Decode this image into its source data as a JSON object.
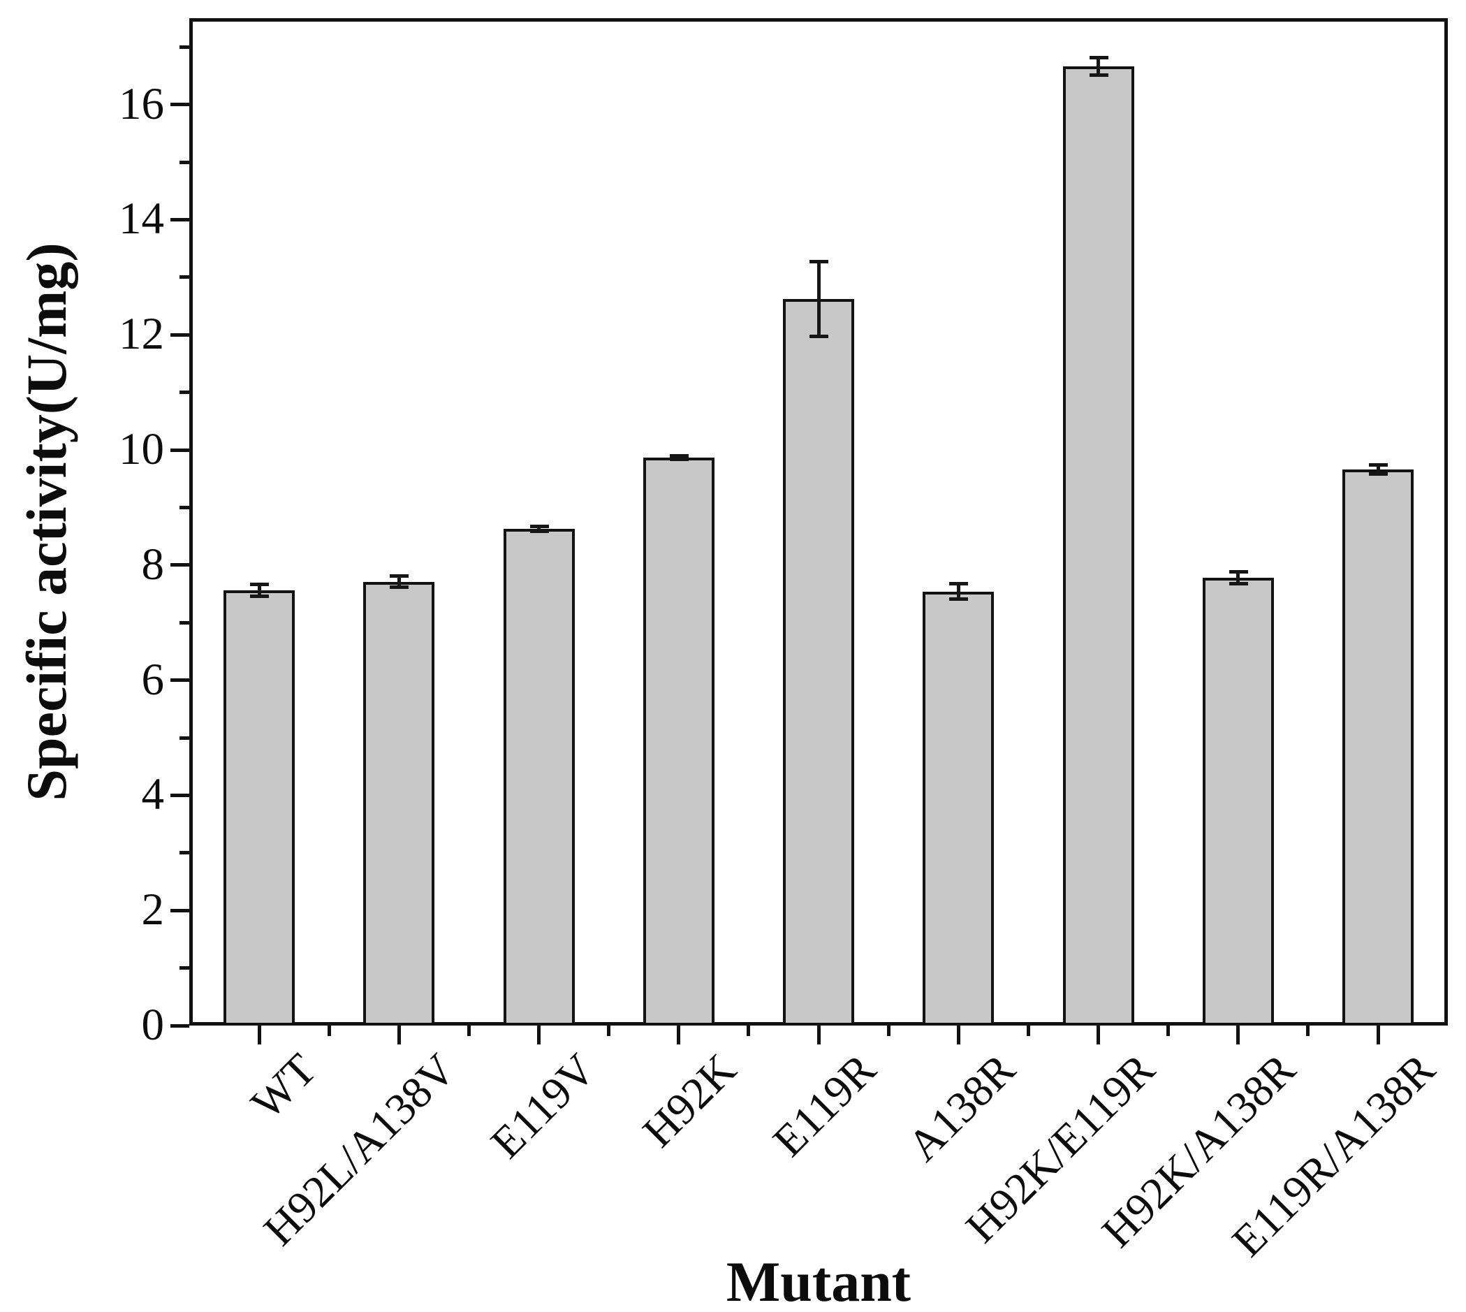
{
  "figure": {
    "background": "#ffffff"
  },
  "chart_data": {
    "type": "bar",
    "title": "",
    "xlabel": "Mutant",
    "ylabel": "Specific activity(U/mg)",
    "categories": [
      "WT",
      "H92L/A138V",
      "E119V",
      "H92K",
      "E119R",
      "A138R",
      "H92K/E119R",
      "H92K/A138R",
      "E119R/A138R"
    ],
    "values": [
      7.56,
      7.71,
      8.63,
      9.87,
      12.62,
      7.54,
      16.66,
      7.78,
      9.66
    ],
    "errors": [
      0.1,
      0.1,
      0.04,
      0.03,
      0.65,
      0.13,
      0.15,
      0.1,
      0.08
    ],
    "ylim": [
      0,
      17.5
    ],
    "y_major_ticks": [
      "0",
      "2",
      "4",
      "6",
      "8",
      "10",
      "12",
      "14",
      "16"
    ],
    "y_major_step": 2,
    "y_minor_step": 1,
    "x_minor_ticks_between_categories": true,
    "grid": false,
    "legend": null,
    "bar_fill": "#c8c8c8",
    "bar_stroke": "#121212",
    "error_color": "#161616",
    "axis_color": "#111111",
    "tick_label_rotation_deg": -45
  }
}
